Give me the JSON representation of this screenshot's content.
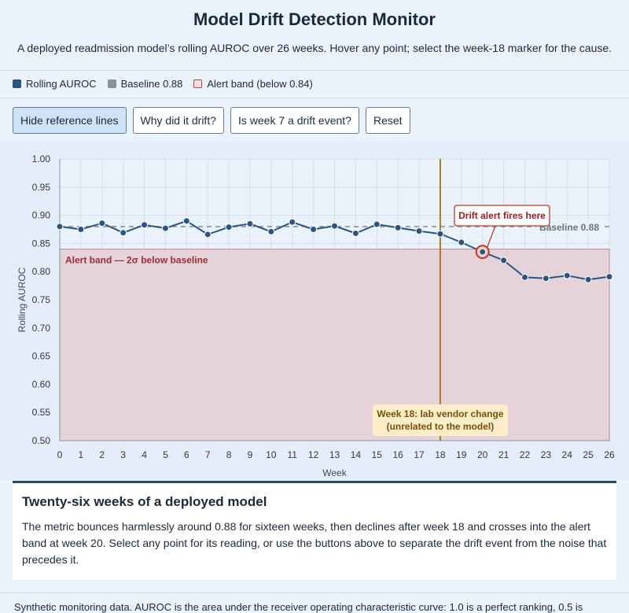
{
  "header": {
    "title": "Model Drift Detection Monitor",
    "subtitle": "A deployed readmission model’s rolling AUROC over 26 weeks. Hover any point; select the week-18 marker for the cause."
  },
  "legend": {
    "items": [
      {
        "label": "Rolling AUROC",
        "color": "#2a5580"
      },
      {
        "label": "Baseline 0.88",
        "color": "#8a929b"
      },
      {
        "label": "Alert band (below 0.84)",
        "color": "#f3dde0"
      }
    ]
  },
  "toolbar": {
    "buttons": [
      {
        "label": "Hide reference lines",
        "active": true
      },
      {
        "label": "Why did it drift?",
        "active": false
      },
      {
        "label": "Is week 7 a drift event?",
        "active": false
      },
      {
        "label": "Reset",
        "active": false
      }
    ]
  },
  "chart_data": {
    "type": "line",
    "xlabel": "Week",
    "ylabel": "Rolling AUROC",
    "xlim": [
      0,
      26
    ],
    "ylim": [
      0.5,
      1.0
    ],
    "x_ticks": [
      "0",
      "1",
      "2",
      "3",
      "4",
      "5",
      "6",
      "7",
      "8",
      "9",
      "10",
      "11",
      "12",
      "13",
      "14",
      "15",
      "16",
      "17",
      "18",
      "19",
      "20",
      "21",
      "22",
      "23",
      "24",
      "25",
      "26"
    ],
    "y_ticks": [
      "0.50",
      "0.55",
      "0.60",
      "0.65",
      "0.70",
      "0.75",
      "0.80",
      "0.85",
      "0.90",
      "0.95",
      "1.00"
    ],
    "grid": true,
    "series": [
      {
        "name": "Rolling AUROC",
        "color": "#2a5580",
        "x": [
          0,
          1,
          2,
          3,
          4,
          5,
          6,
          7,
          8,
          9,
          10,
          11,
          12,
          13,
          14,
          15,
          16,
          17,
          18,
          19,
          20,
          21,
          22,
          23,
          24,
          25,
          26
        ],
        "values": [
          0.88,
          0.875,
          0.886,
          0.869,
          0.883,
          0.877,
          0.89,
          0.866,
          0.879,
          0.885,
          0.871,
          0.888,
          0.875,
          0.881,
          0.868,
          0.884,
          0.878,
          0.872,
          0.867,
          0.852,
          0.835,
          0.82,
          0.79,
          0.788,
          0.793,
          0.786,
          0.791
        ]
      }
    ],
    "baseline": {
      "value": 0.88,
      "label": "Baseline 0.88",
      "color": "#8a929b"
    },
    "alert_band": {
      "upper": 0.84,
      "label": "Alert band — 2σ below baseline",
      "color": "#e6d3da"
    },
    "event_marker": {
      "x": 18,
      "color": "#b07a1a",
      "label_line1": "Week 18: lab vendor change",
      "label_line2": "(unrelated to the model)"
    },
    "alert_point": {
      "x": 20,
      "y": 0.835,
      "label": "Drift alert fires here",
      "color": "#c0392b"
    }
  },
  "description": {
    "title": "Twenty-six weeks of a deployed model",
    "body": "The metric bounces harmlessly around 0.88 for sixteen weeks, then declines after week 18 and crosses into the alert band at week 20. Select any point for its reading, or use the buttons above to separate the drift event from the noise that precedes it."
  },
  "footer": {
    "text": "Synthetic monitoring data. AUROC is the area under the receiver operating characteristic curve: 1.0 is a perfect ranking, 0.5 is"
  }
}
